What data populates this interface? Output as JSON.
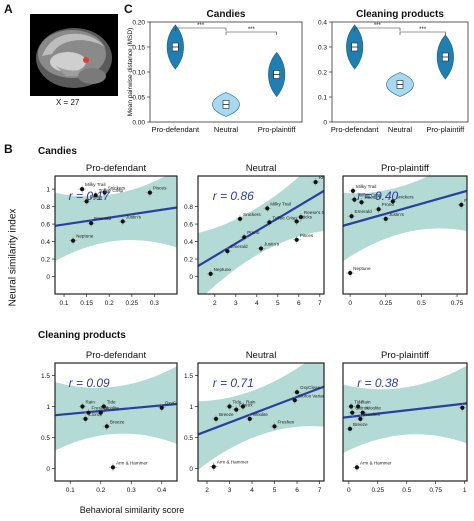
{
  "figure": {
    "panel_labels": {
      "A": "A",
      "B": "B",
      "C": "C"
    },
    "brain_caption": "X = 27",
    "colors": {
      "violin_dark": "#1f7fb3",
      "violin_light": "#a8d9f0",
      "ci_band": "#a6d4cc",
      "regression_line": "#2a3f9e",
      "r_text": "#2a3f9e"
    }
  },
  "chart_data": [
    {
      "type": "violin",
      "panel": "C",
      "title": "Candies",
      "ylabel": "Mean pairwise distance (MSD)",
      "categories": [
        "Pro-defendant",
        "Neutral",
        "Pro-plaintiff"
      ],
      "values": [
        0.15,
        0.035,
        0.095
      ],
      "ylim": [
        0,
        0.2
      ],
      "yticks": [
        "0.00",
        "0.05",
        "0.10",
        "0.15",
        "0.20"
      ],
      "significance": [
        "***",
        "***"
      ]
    },
    {
      "type": "violin",
      "panel": "C",
      "title": "Cleaning products",
      "categories": [
        "Pro-defendant",
        "Neutral",
        "Pro-plaintiff"
      ],
      "values": [
        0.3,
        0.15,
        0.26
      ],
      "ylim": [
        0,
        0.4
      ],
      "yticks": [
        "0",
        "0.1",
        "0.2",
        "0.3",
        "0.4"
      ],
      "significance": [
        "***",
        "***"
      ]
    },
    {
      "type": "scatter",
      "panel": "B",
      "row": "Candies",
      "title": "Pro-defendant",
      "r": "r = 0.17",
      "xlim": [
        0.08,
        0.35
      ],
      "ylim": [
        -0.2,
        1.15
      ],
      "xticks": [
        "0.1",
        "0.15",
        "0.2",
        "0.25",
        "0.3"
      ],
      "yticks": [
        "0",
        "0.2",
        "0.4",
        "0.6",
        "0.8",
        "1"
      ],
      "regression": [
        [
          0.08,
          0.58
        ],
        [
          0.35,
          0.79
        ]
      ],
      "points": [
        {
          "label": "Milky Trail",
          "x": 0.14,
          "y": 1.0
        },
        {
          "label": "Snickers",
          "x": 0.19,
          "y": 0.96
        },
        {
          "label": "Toffee Crisp",
          "x": 0.17,
          "y": 0.93
        },
        {
          "label": "Prono",
          "x": 0.15,
          "y": 0.86
        },
        {
          "label": "Pisces",
          "x": 0.29,
          "y": 0.96
        },
        {
          "label": "Emerald",
          "x": 0.16,
          "y": 0.61
        },
        {
          "label": "Justin's",
          "x": 0.23,
          "y": 0.63
        },
        {
          "label": "Neptune",
          "x": 0.12,
          "y": 0.41
        }
      ]
    },
    {
      "type": "scatter",
      "panel": "B",
      "row": "Candies",
      "title": "Neutral",
      "r": "r = 0.86",
      "xlim": [
        1.2,
        7.2
      ],
      "ylim": [
        -0.2,
        1.15
      ],
      "xticks": [
        "2",
        "3",
        "4",
        "5",
        "6",
        "7"
      ],
      "yticks": [
        "0",
        "0.2",
        "0.4",
        "0.6",
        "0.8"
      ],
      "regression": [
        [
          1.2,
          0.12
        ],
        [
          7.2,
          0.98
        ]
      ],
      "points": [
        {
          "label": "Reese's",
          "x": 6.8,
          "y": 1.08
        },
        {
          "label": "Milky Trail",
          "x": 4.5,
          "y": 0.78
        },
        {
          "label": "Snickers",
          "x": 3.2,
          "y": 0.66
        },
        {
          "label": "Toffee Crisp",
          "x": 4.6,
          "y": 0.62
        },
        {
          "label": "Reese's 5",
          "x": 6.1,
          "y": 0.68
        },
        {
          "label": "Sticks",
          "x": 5.9,
          "y": 0.63
        },
        {
          "label": "Prono",
          "x": 3.4,
          "y": 0.45
        },
        {
          "label": "Pisces",
          "x": 5.9,
          "y": 0.42
        },
        {
          "label": "Emerald",
          "x": 2.6,
          "y": 0.29
        },
        {
          "label": "Justin's",
          "x": 4.2,
          "y": 0.32
        },
        {
          "label": "Neptune",
          "x": 1.8,
          "y": 0.03
        }
      ]
    },
    {
      "type": "scatter",
      "panel": "B",
      "row": "Candies",
      "title": "Pro-plaintiff",
      "r": "r = 0.40",
      "xlim": [
        -0.05,
        0.82
      ],
      "ylim": [
        -0.2,
        1.15
      ],
      "xticks": [
        "0",
        "0.25",
        "0.5",
        "0.75"
      ],
      "yticks": [],
      "regression": [
        [
          -0.05,
          0.58
        ],
        [
          0.82,
          0.98
        ]
      ],
      "points": [
        {
          "label": "Milky Trail",
          "x": 0.02,
          "y": 0.98
        },
        {
          "label": "Toffee Crisp",
          "x": 0.03,
          "y": 0.88
        },
        {
          "label": "Reese's",
          "x": 0.08,
          "y": 0.85
        },
        {
          "label": "Snickers",
          "x": 0.3,
          "y": 0.86
        },
        {
          "label": "Prono",
          "x": 0.2,
          "y": 0.77
        },
        {
          "label": "Emerald",
          "x": 0.01,
          "y": 0.69
        },
        {
          "label": "Justin's",
          "x": 0.25,
          "y": 0.66
        },
        {
          "label": "Pisces",
          "x": 0.78,
          "y": 0.82
        },
        {
          "label": "Neptune",
          "x": 0.0,
          "y": 0.04
        }
      ]
    },
    {
      "type": "scatter",
      "panel": "B",
      "row": "Cleaning products",
      "title": "Pro-defendant",
      "r": "r = 0.09",
      "xlim": [
        0.05,
        0.45
      ],
      "ylim": [
        -0.2,
        1.7
      ],
      "xticks": [
        "0.1",
        "0.2",
        "0.3",
        "0.4"
      ],
      "yticks": [
        "0",
        "0.5",
        "1",
        "1.5"
      ],
      "regression": [
        [
          0.05,
          0.86
        ],
        [
          0.45,
          1.04
        ]
      ],
      "points": [
        {
          "label": "Rain",
          "x": 0.14,
          "y": 1.0
        },
        {
          "label": "Tide",
          "x": 0.21,
          "y": 1.0
        },
        {
          "label": "Freshen",
          "x": 0.16,
          "y": 0.9
        },
        {
          "label": "Woolite",
          "x": 0.2,
          "y": 0.9
        },
        {
          "label": "Clorox",
          "x": 0.15,
          "y": 0.8
        },
        {
          "label": "Breeze",
          "x": 0.22,
          "y": 0.68
        },
        {
          "label": "OxyClean",
          "x": 0.4,
          "y": 0.98
        },
        {
          "label": "Arm & Hammer",
          "x": 0.24,
          "y": 0.02
        }
      ]
    },
    {
      "type": "scatter",
      "panel": "B",
      "row": "Cleaning products",
      "title": "Neutral",
      "r": "r = 0.71",
      "xlim": [
        1.6,
        7.2
      ],
      "ylim": [
        -0.2,
        1.7
      ],
      "xticks": [
        "2",
        "3",
        "4",
        "5",
        "6",
        "7"
      ],
      "yticks": [
        "0",
        "0.5",
        "1",
        "1.5"
      ],
      "regression": [
        [
          1.6,
          0.55
        ],
        [
          7.2,
          1.32
        ]
      ],
      "points": [
        {
          "label": "Tide",
          "x": 3.0,
          "y": 1.0
        },
        {
          "label": "Rain",
          "x": 3.6,
          "y": 1.0
        },
        {
          "label": "Clorox",
          "x": 3.3,
          "y": 0.95
        },
        {
          "label": "OxyClean",
          "x": 6.0,
          "y": 1.23
        },
        {
          "label": "Clorox Variant",
          "x": 5.9,
          "y": 1.1
        },
        {
          "label": "Breeze",
          "x": 2.4,
          "y": 0.8
        },
        {
          "label": "Woolite",
          "x": 3.9,
          "y": 0.8
        },
        {
          "label": "Freshen",
          "x": 5.0,
          "y": 0.68
        },
        {
          "label": "Arm & Hammer",
          "x": 2.3,
          "y": 0.03
        }
      ]
    },
    {
      "type": "scatter",
      "panel": "B",
      "row": "Cleaning products",
      "title": "Pro-plaintiff",
      "r": "r = 0.38",
      "xlim": [
        -0.05,
        1.02
      ],
      "ylim": [
        -0.2,
        1.7
      ],
      "xticks": [
        "0",
        "0.25",
        "0.5",
        "0.75",
        "1"
      ],
      "yticks": [],
      "regression": [
        [
          -0.05,
          0.82
        ],
        [
          1.02,
          1.05
        ]
      ],
      "points": [
        {
          "label": "Tide",
          "x": 0.02,
          "y": 1.0
        },
        {
          "label": "Rain",
          "x": 0.08,
          "y": 1.0
        },
        {
          "label": "Clorox",
          "x": 0.03,
          "y": 0.9
        },
        {
          "label": "Woolite",
          "x": 0.12,
          "y": 0.9
        },
        {
          "label": "Freshen",
          "x": 0.1,
          "y": 0.8
        },
        {
          "label": "OxyClean",
          "x": 0.98,
          "y": 0.98
        },
        {
          "label": "Breeze",
          "x": 0.01,
          "y": 0.64
        },
        {
          "label": "Arm & Hammer",
          "x": 0.07,
          "y": 0.02
        }
      ]
    }
  ],
  "panelB": {
    "row_titles": [
      "Candies",
      "Cleaning products"
    ],
    "ylabel": "Neural similarity index",
    "xlabel": "Behavioral similarity score"
  }
}
